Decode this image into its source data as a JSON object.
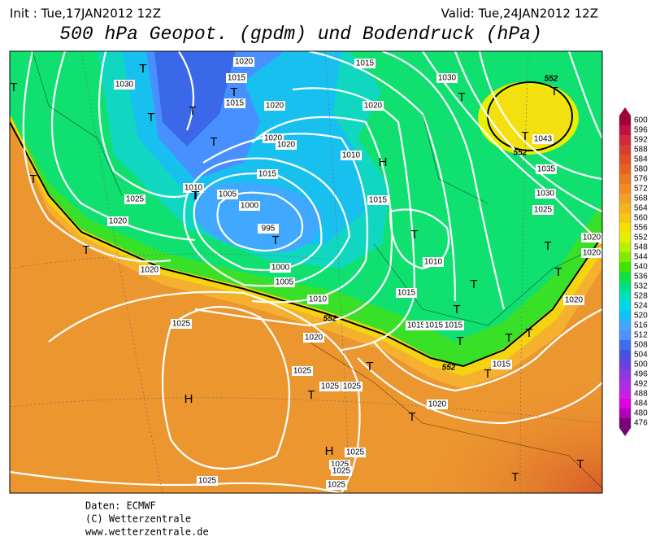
{
  "header": {
    "init": "Init : Tue,17JAN2012 12Z",
    "valid": "Valid: Tue,24JAN2012 12Z",
    "title": "500 hPa Geopot. (gpdm) und Bodendruck (hPa)"
  },
  "legend": {
    "labels": [
      600,
      596,
      592,
      588,
      584,
      580,
      576,
      572,
      568,
      564,
      560,
      556,
      552,
      548,
      544,
      540,
      536,
      532,
      528,
      524,
      520,
      516,
      512,
      508,
      504,
      500,
      496,
      492,
      488,
      484,
      480,
      476
    ]
  },
  "map": {
    "pressure_labels": [
      1020,
      1015,
      1015,
      1030,
      1020,
      1020,
      1020,
      1015,
      1010,
      1005,
      1000,
      995,
      1000,
      1005,
      1010,
      1020,
      1025,
      1020,
      1025,
      1020,
      1025,
      1025,
      1025,
      1010,
      1020,
      1015,
      1030,
      1015,
      1010,
      1015,
      1015,
      1015,
      1015,
      1035,
      1030,
      1025,
      1043,
      1020,
      1020,
      1020,
      1015,
      1020,
      1025,
      1025,
      1025,
      1025,
      1025
    ],
    "contour_labels": [
      552,
      552,
      552,
      552
    ],
    "centers": [
      "T",
      "T",
      "T",
      "T",
      "T",
      "T",
      "T",
      "T",
      "T",
      "T",
      "H",
      "H",
      "T",
      "T",
      "T",
      "T",
      "T",
      "T",
      "T",
      "T",
      "T",
      "T",
      "T",
      "T",
      "T",
      "H",
      "T",
      "T",
      "T",
      "T",
      "T",
      "T"
    ]
  },
  "footer": {
    "lines": [
      "Daten: ECMWF",
      "(C) Wetterzentrale",
      "www.wetterzentrale.de"
    ]
  }
}
